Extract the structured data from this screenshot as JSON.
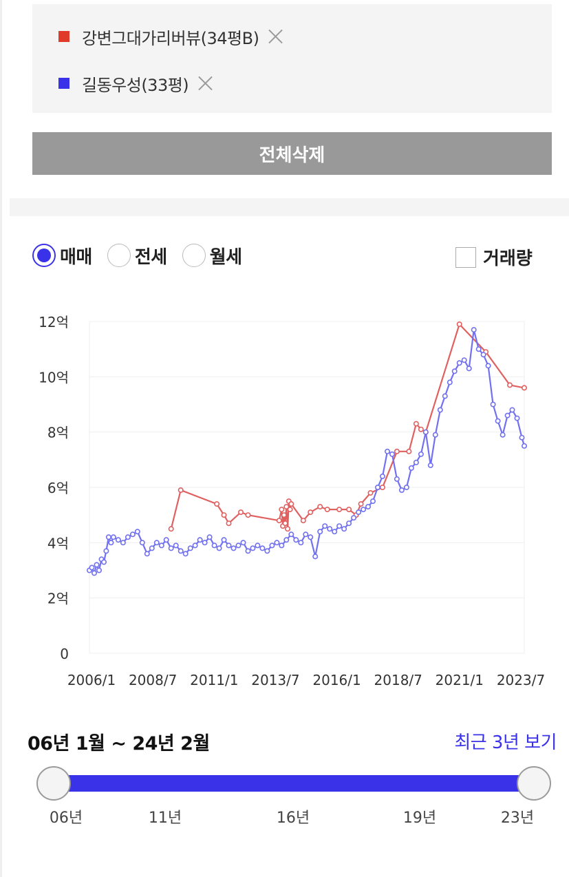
{
  "compare": {
    "items": [
      {
        "label": "강변그대가리버뷰(34평B)",
        "color": "#e03a2a"
      },
      {
        "label": "길동우성(33평)",
        "color": "#3a32e8"
      }
    ],
    "clear_all_label": "전체삭제"
  },
  "trade_type": {
    "options": [
      "매매",
      "전세",
      "월세"
    ],
    "selected": "매매"
  },
  "volume_toggle": {
    "label": "거래량",
    "checked": false
  },
  "chart_data": {
    "type": "line",
    "title": "",
    "xlabel": "",
    "ylabel": "",
    "x_ticks": [
      "2006/1",
      "2008/7",
      "2011/1",
      "2013/7",
      "2016/1",
      "2018/7",
      "2021/1",
      "2023/7"
    ],
    "y_ticks": [
      "0",
      "2억",
      "4억",
      "6억",
      "8억",
      "10억",
      "12억"
    ],
    "xlim": [
      2006.0,
      2024.1
    ],
    "ylim": [
      0,
      12
    ],
    "grid": true,
    "legend": "none",
    "series": [
      {
        "name": "강변그대가리버뷰(34평B)",
        "color": "#e06060",
        "x": [
          2009.4,
          2009.8,
          2011.3,
          2011.6,
          2011.8,
          2012.3,
          2012.6,
          2013.9,
          2014.0,
          2014.05,
          2014.1,
          2014.15,
          2014.2,
          2014.25,
          2014.3,
          2014.35,
          2014.4,
          2014.9,
          2015.2,
          2015.6,
          2015.9,
          2016.4,
          2016.8,
          2017.1,
          2017.3,
          2017.7,
          2018.2,
          2018.8,
          2019.3,
          2019.6,
          2019.8,
          2020.0,
          2021.4,
          2022.5,
          2023.5,
          2024.1
        ],
        "y": [
          4.5,
          5.9,
          5.4,
          5.0,
          4.7,
          5.1,
          5.0,
          4.8,
          5.2,
          4.6,
          5.0,
          4.7,
          5.3,
          4.5,
          5.5,
          5.2,
          5.4,
          4.8,
          5.1,
          5.3,
          5.2,
          5.2,
          5.2,
          5.0,
          5.4,
          5.8,
          6.0,
          7.3,
          7.3,
          8.3,
          8.1,
          8.0,
          11.9,
          10.9,
          9.7,
          9.6
        ]
      },
      {
        "name": "길동우성(33평)",
        "color": "#7070f0",
        "x": [
          2006.0,
          2006.1,
          2006.2,
          2006.3,
          2006.4,
          2006.5,
          2006.6,
          2006.7,
          2006.8,
          2006.9,
          2007.0,
          2007.2,
          2007.4,
          2007.6,
          2007.8,
          2008.0,
          2008.2,
          2008.4,
          2008.6,
          2008.8,
          2009.0,
          2009.2,
          2009.4,
          2009.6,
          2009.8,
          2010.0,
          2010.2,
          2010.4,
          2010.6,
          2010.8,
          2011.0,
          2011.2,
          2011.4,
          2011.6,
          2011.8,
          2012.0,
          2012.2,
          2012.4,
          2012.6,
          2012.8,
          2013.0,
          2013.2,
          2013.4,
          2013.6,
          2013.8,
          2014.0,
          2014.2,
          2014.4,
          2014.6,
          2014.8,
          2015.0,
          2015.2,
          2015.4,
          2015.6,
          2015.8,
          2016.0,
          2016.2,
          2016.4,
          2016.6,
          2016.8,
          2017.0,
          2017.2,
          2017.4,
          2017.6,
          2017.8,
          2018.0,
          2018.2,
          2018.4,
          2018.6,
          2018.8,
          2019.0,
          2019.2,
          2019.4,
          2019.6,
          2019.8,
          2020.0,
          2020.2,
          2020.4,
          2020.6,
          2020.8,
          2021.0,
          2021.2,
          2021.4,
          2021.6,
          2021.8,
          2022.0,
          2022.2,
          2022.4,
          2022.6,
          2022.8,
          2023.0,
          2023.2,
          2023.4,
          2023.6,
          2023.8,
          2024.0,
          2024.1
        ],
        "y": [
          3.0,
          3.1,
          2.9,
          3.2,
          3.0,
          3.4,
          3.3,
          3.7,
          4.2,
          4.0,
          4.2,
          4.1,
          4.0,
          4.2,
          4.3,
          4.4,
          4.0,
          3.6,
          3.8,
          4.0,
          3.9,
          4.1,
          3.8,
          3.9,
          3.7,
          3.6,
          3.8,
          3.9,
          4.1,
          4.0,
          4.2,
          3.9,
          3.8,
          4.1,
          3.9,
          3.8,
          3.9,
          4.0,
          3.7,
          3.8,
          3.9,
          3.8,
          3.7,
          3.9,
          4.0,
          3.9,
          4.1,
          4.3,
          4.1,
          4.0,
          4.3,
          4.2,
          3.5,
          4.4,
          4.6,
          4.5,
          4.4,
          4.6,
          4.5,
          4.7,
          4.9,
          5.1,
          5.2,
          5.3,
          5.5,
          6.0,
          6.4,
          7.3,
          7.2,
          6.3,
          5.9,
          6.0,
          6.7,
          6.9,
          7.2,
          8.0,
          6.8,
          7.9,
          8.8,
          9.3,
          9.8,
          10.2,
          10.5,
          10.6,
          10.3,
          11.7,
          11.0,
          10.8,
          10.4,
          9.0,
          8.4,
          7.9,
          8.6,
          8.8,
          8.5,
          7.8,
          7.5
        ]
      }
    ]
  },
  "period": {
    "range_label": "06년 1월 ~ 24년 2월",
    "recent_link": "최근 3년 보기",
    "tick_labels": [
      "06년",
      "11년",
      "16년",
      "19년",
      "23년"
    ],
    "start_fraction": 0.0,
    "end_fraction": 1.0
  }
}
